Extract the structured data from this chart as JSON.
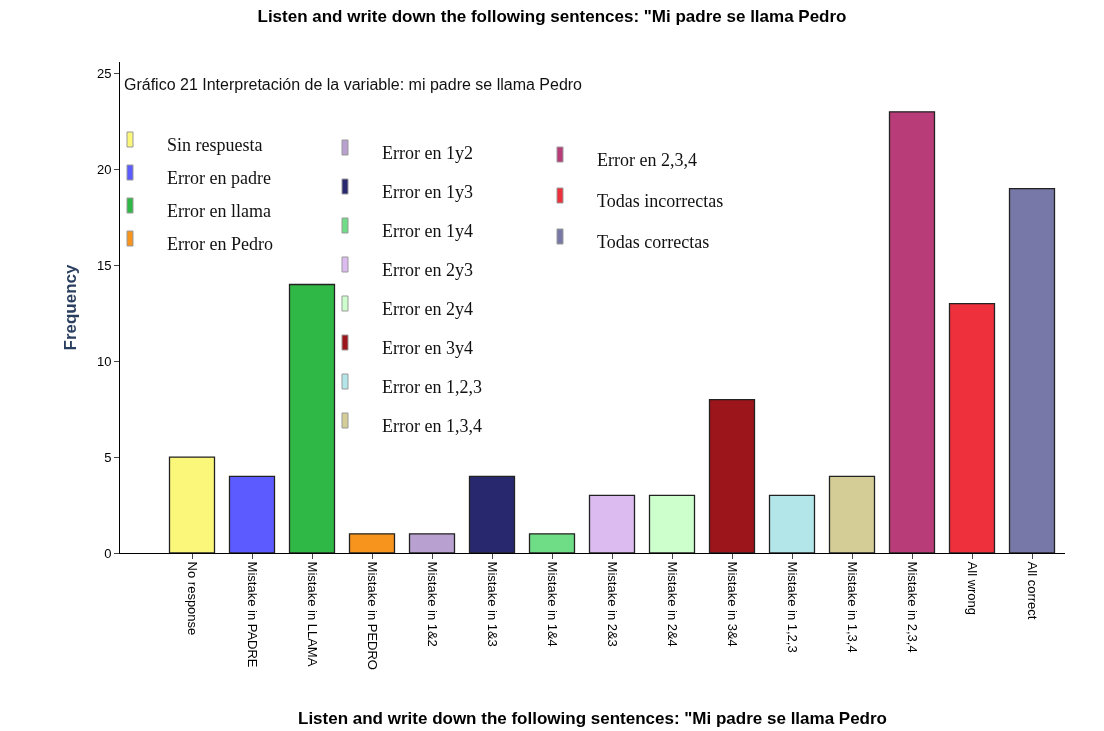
{
  "chart_data": {
    "type": "bar",
    "title": "Listen and write down the following sentences: \"Mi padre se llama Pedro",
    "xlabel": "Listen and write down the following sentences: \"Mi padre se llama Pedro",
    "ylabel": "Frequency",
    "annotations": [
      "Gráfico 21 Interpretación de la variable: mi padre se llama Pedro"
    ],
    "categories": [
      "No response",
      "Mistake in PADRE",
      "Mistake in LLAMA",
      "Mistake in PEDRO",
      "Mistake in 1&2",
      "Mistake in 1&3",
      "Mistake in 1&4",
      "Mistake in 2&3",
      "Mistake in 2&4",
      "Mistake in 3&4",
      "Mistake in 1,2,3",
      "Mistake in 1,3,4",
      "Mistake in 2,3,4",
      "All wrong",
      "All correct"
    ],
    "series": [
      {
        "name": "Sin respuesta",
        "color": "#fbf77a",
        "values": [
          5,
          null,
          null,
          null,
          null,
          null,
          null,
          null,
          null,
          null,
          null,
          null,
          null,
          null,
          null
        ]
      },
      {
        "name": "Error en padre",
        "color": "#5b5bff",
        "values": [
          null,
          4,
          null,
          null,
          null,
          null,
          null,
          null,
          null,
          null,
          null,
          null,
          null,
          null,
          null
        ]
      },
      {
        "name": "Error en llama",
        "color": "#2fb845",
        "values": [
          null,
          null,
          14,
          null,
          null,
          null,
          null,
          null,
          null,
          null,
          null,
          null,
          null,
          null,
          null
        ]
      },
      {
        "name": "Error en Pedro",
        "color": "#f7941d",
        "values": [
          null,
          null,
          null,
          1,
          null,
          null,
          null,
          null,
          null,
          null,
          null,
          null,
          null,
          null,
          null
        ]
      },
      {
        "name": "Error en 1y2",
        "color": "#b8a0d0",
        "values": [
          null,
          null,
          null,
          null,
          1,
          null,
          null,
          null,
          null,
          null,
          null,
          null,
          null,
          null,
          null
        ]
      },
      {
        "name": "Error en 1y3",
        "color": "#27286e",
        "values": [
          null,
          null,
          null,
          null,
          null,
          4,
          null,
          null,
          null,
          null,
          null,
          null,
          null,
          null,
          null
        ]
      },
      {
        "name": "Error en 1y4",
        "color": "#6fdc86",
        "values": [
          null,
          null,
          null,
          null,
          null,
          null,
          1,
          null,
          null,
          null,
          null,
          null,
          null,
          null,
          null
        ]
      },
      {
        "name": "Error en 2y3",
        "color": "#dcbcf0",
        "values": [
          null,
          null,
          null,
          null,
          null,
          null,
          null,
          3,
          null,
          null,
          null,
          null,
          null,
          null,
          null
        ]
      },
      {
        "name": "Error en 2y4",
        "color": "#ccffcc",
        "values": [
          null,
          null,
          null,
          null,
          null,
          null,
          null,
          null,
          3,
          null,
          null,
          null,
          null,
          null,
          null
        ]
      },
      {
        "name": "Error en 3y4",
        "color": "#9c151a",
        "values": [
          null,
          null,
          null,
          null,
          null,
          null,
          null,
          null,
          null,
          8,
          null,
          null,
          null,
          null,
          null
        ]
      },
      {
        "name": "Error en 1,2,3",
        "color": "#b3e6e8",
        "values": [
          null,
          null,
          null,
          null,
          null,
          null,
          null,
          null,
          null,
          null,
          3,
          null,
          null,
          null,
          null
        ]
      },
      {
        "name": "Error en 1,3,4",
        "color": "#d4cd96",
        "values": [
          null,
          null,
          null,
          null,
          null,
          null,
          null,
          null,
          null,
          null,
          null,
          4,
          null,
          null,
          null
        ]
      },
      {
        "name": "Error en 2,3,4",
        "color": "#b83c78",
        "values": [
          null,
          null,
          null,
          null,
          null,
          null,
          null,
          null,
          null,
          null,
          null,
          null,
          23,
          null,
          null
        ]
      },
      {
        "name": "Todas incorrectas",
        "color": "#ee303c",
        "values": [
          null,
          null,
          null,
          null,
          null,
          null,
          null,
          null,
          null,
          null,
          null,
          null,
          null,
          13,
          null
        ]
      },
      {
        "name": "Todas correctas",
        "color": "#7777a8",
        "values": [
          null,
          null,
          null,
          null,
          null,
          null,
          null,
          null,
          null,
          null,
          null,
          null,
          null,
          null,
          19
        ]
      }
    ],
    "ylim": [
      0,
      25.6
    ],
    "yticks": [
      0,
      5,
      10,
      15,
      20,
      25
    ],
    "legend": "top left"
  }
}
